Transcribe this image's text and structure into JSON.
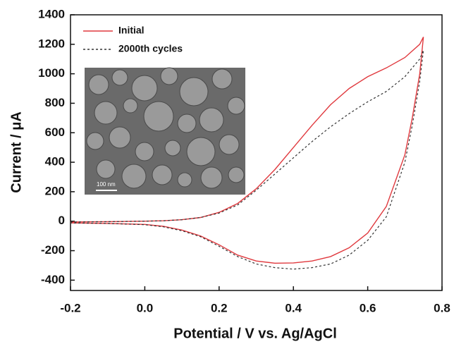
{
  "chart_data": {
    "type": "line",
    "x_label": "Potential / V vs. Ag/AgCl",
    "y_label": "Current / μA",
    "inset_label": "100 nm",
    "x": [
      -0.2,
      -0.1,
      0,
      0.05,
      0.1,
      0.15,
      0.2,
      0.25,
      0.3,
      0.35,
      0.4,
      0.45,
      0.5,
      0.55,
      0.6,
      0.65,
      0.7,
      0.74,
      0.75,
      0.74,
      0.72,
      0.7,
      0.65,
      0.6,
      0.55,
      0.5,
      0.45,
      0.4,
      0.35,
      0.3,
      0.25,
      0.2,
      0.15,
      0.1,
      0.05,
      0,
      -0.1,
      -0.2
    ],
    "series": [
      {
        "name": "Initial",
        "color": "#e0393e",
        "dashed": false,
        "values": [
          -5,
          -3,
          0,
          3,
          10,
          25,
          60,
          120,
          220,
          350,
          500,
          650,
          790,
          900,
          980,
          1040,
          1110,
          1200,
          1250,
          1000,
          700,
          450,
          100,
          -80,
          -180,
          -240,
          -270,
          -283,
          -285,
          -270,
          -230,
          -160,
          -100,
          -60,
          -35,
          -22,
          -15,
          -12
        ]
      },
      {
        "name": "2000th cycles",
        "color": "#333333",
        "dashed": true,
        "values": [
          -5,
          -3,
          0,
          3,
          10,
          25,
          55,
          110,
          210,
          320,
          430,
          540,
          640,
          730,
          810,
          880,
          980,
          1100,
          1160,
          950,
          650,
          400,
          30,
          -130,
          -230,
          -290,
          -315,
          -325,
          -315,
          -290,
          -240,
          -170,
          -105,
          -65,
          -38,
          -24,
          -15,
          -12
        ]
      }
    ],
    "xlim": [
      -0.2,
      0.8
    ],
    "xticks": [
      -0.2,
      {
        "value": 0,
        "label": "0.0"
      },
      0.2,
      0.4,
      0.6,
      0.8
    ],
    "ylim": [
      -470,
      1400
    ],
    "yticks": [
      -400,
      -200,
      0,
      200,
      400,
      600,
      800,
      1000,
      1200,
      1400
    ],
    "grid": false
  }
}
